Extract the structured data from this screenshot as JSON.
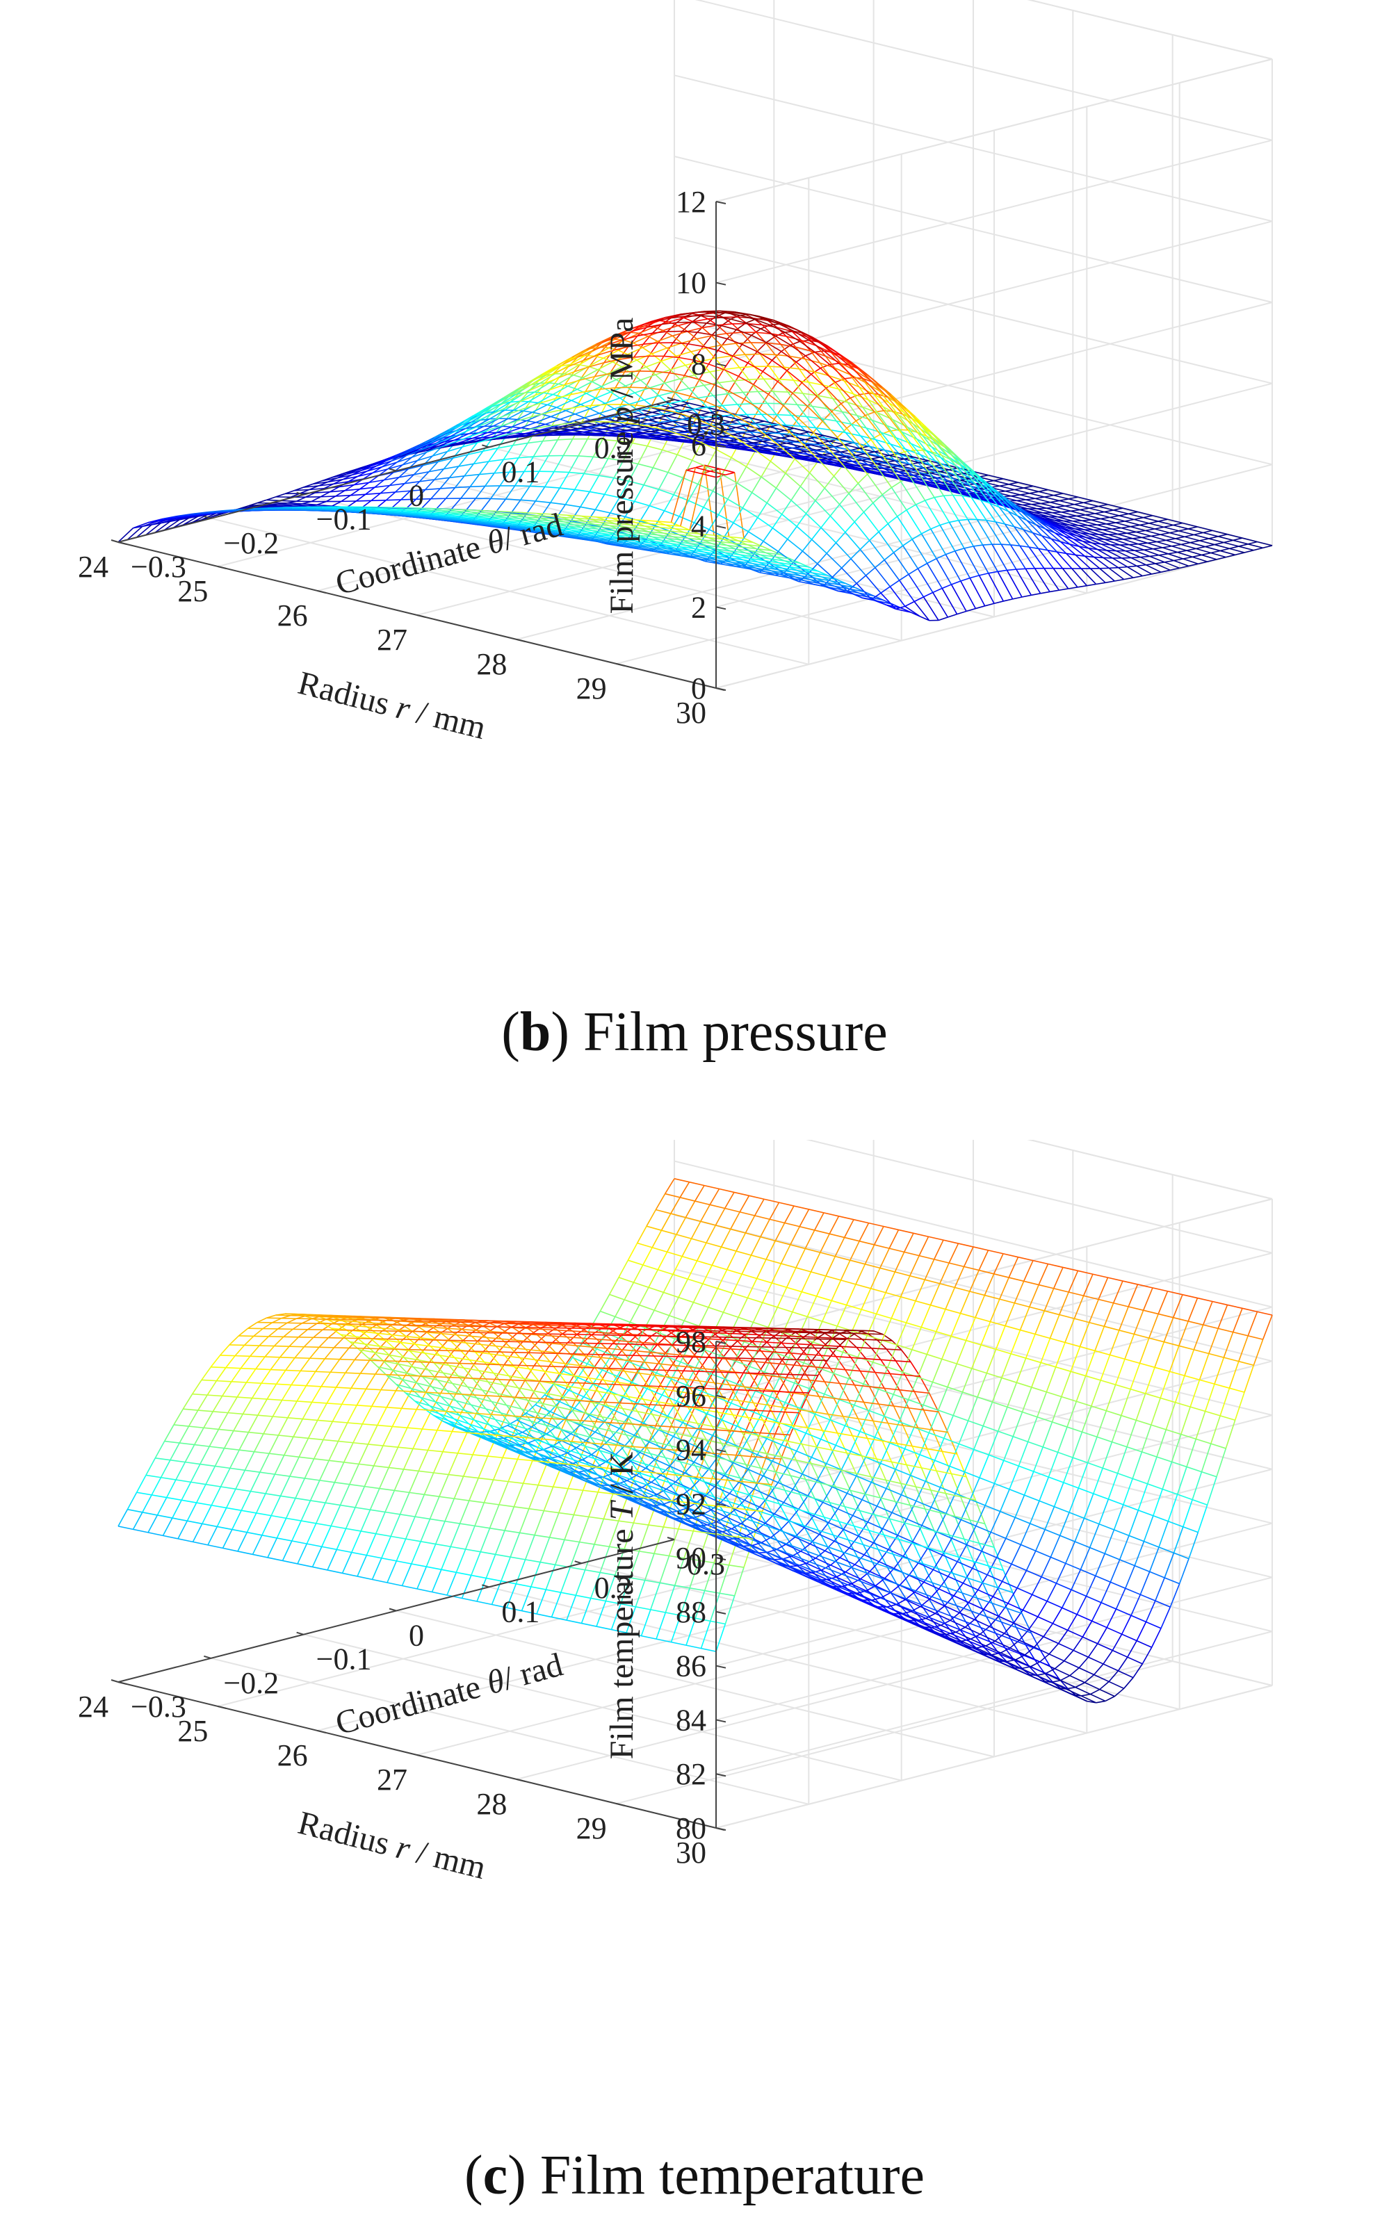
{
  "chart_data": [
    {
      "type": "surface",
      "caption_letter": "b",
      "caption_text": "Film pressure",
      "zlabel_name": "Film pressure",
      "zlabel_symbol": "p",
      "zlabel_unit": "MPa",
      "xlabel_name": "Radius",
      "xlabel_symbol": "r",
      "xlabel_unit": "mm",
      "ylabel_name": "Coordinate",
      "ylabel_symbol": "θ",
      "ylabel_unit": "rad",
      "r_ticks": [
        "30",
        "29",
        "28",
        "27",
        "26",
        "25",
        "24"
      ],
      "theta_ticks": [
        "−0.3",
        "−0.2",
        "−0.1",
        "0",
        "0.1",
        "0.2",
        "0.3"
      ],
      "z_ticks": [
        "0",
        "2",
        "4",
        "6",
        "8",
        "10",
        "12"
      ],
      "r_range": [
        24,
        30
      ],
      "theta_range": [
        -0.3,
        0.3
      ],
      "z_range": [
        0,
        12
      ],
      "peak_value": 8.7,
      "peak_location": {
        "r": 30,
        "theta": 0
      },
      "spike_value": 5.2,
      "spike_location": {
        "r": 30,
        "theta": -0.3
      }
    },
    {
      "type": "surface",
      "caption_letter": "c",
      "caption_text": "Film temperature",
      "zlabel_name": "Film temperature",
      "zlabel_symbol": "T",
      "zlabel_unit": "K",
      "xlabel_name": "Radius",
      "xlabel_symbol": "r",
      "xlabel_unit": "mm",
      "ylabel_name": "Coordinate",
      "ylabel_symbol": "θ",
      "ylabel_unit": "rad",
      "r_ticks": [
        "30",
        "29",
        "28",
        "27",
        "26",
        "25",
        "24"
      ],
      "theta_ticks": [
        "−0.3",
        "−0.2",
        "−0.1",
        "0",
        "0.1",
        "0.2",
        "0.3"
      ],
      "z_ticks": [
        "80",
        "82",
        "84",
        "86",
        "88",
        "90",
        "92",
        "94",
        "96",
        "98"
      ],
      "r_range": [
        24,
        30
      ],
      "theta_range": [
        -0.3,
        0.3
      ],
      "z_range": [
        80,
        98
      ],
      "max_value": 101,
      "min_value": 81.5,
      "start_value": 95
    }
  ]
}
